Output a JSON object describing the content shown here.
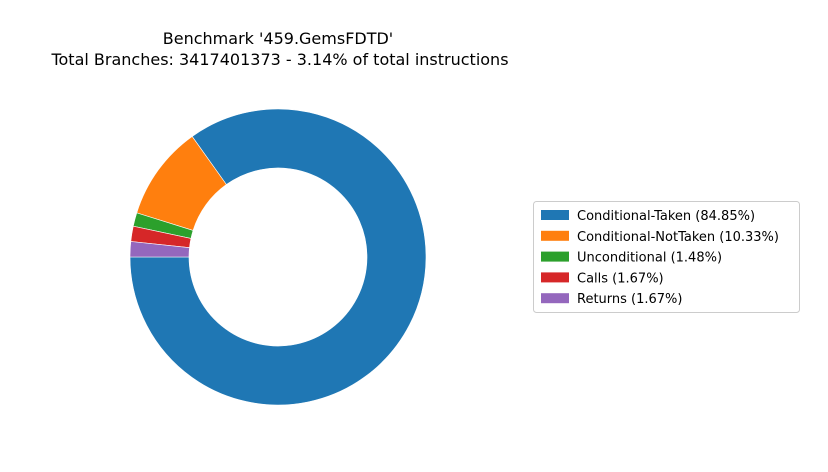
{
  "chart_data": {
    "type": "pie",
    "style": "donut",
    "title_lines": [
      "Benchmark '459.GemsFDTD'",
      "Total Branches: 3417401373 - 3.14% of total instructions"
    ],
    "legend_position": "center-right",
    "start_angle_deg": 180,
    "direction": "counterclockwise",
    "slices": [
      {
        "label": "Conditional-Taken",
        "legend_text": "Conditional-Taken (84.85%)",
        "value": 84.85,
        "color": "#1f77b4"
      },
      {
        "label": "Conditional-NotTaken",
        "legend_text": "Conditional-NotTaken (10.33%)",
        "value": 10.33,
        "color": "#ff7f0e"
      },
      {
        "label": "Unconditional",
        "legend_text": "Unconditional (1.48%)",
        "value": 1.48,
        "color": "#2ca02c"
      },
      {
        "label": "Calls",
        "legend_text": "Calls (1.67%)",
        "value": 1.67,
        "color": "#d62728"
      },
      {
        "label": "Returns",
        "legend_text": "Returns (1.67%)",
        "value": 1.67,
        "color": "#9467bd"
      }
    ]
  }
}
